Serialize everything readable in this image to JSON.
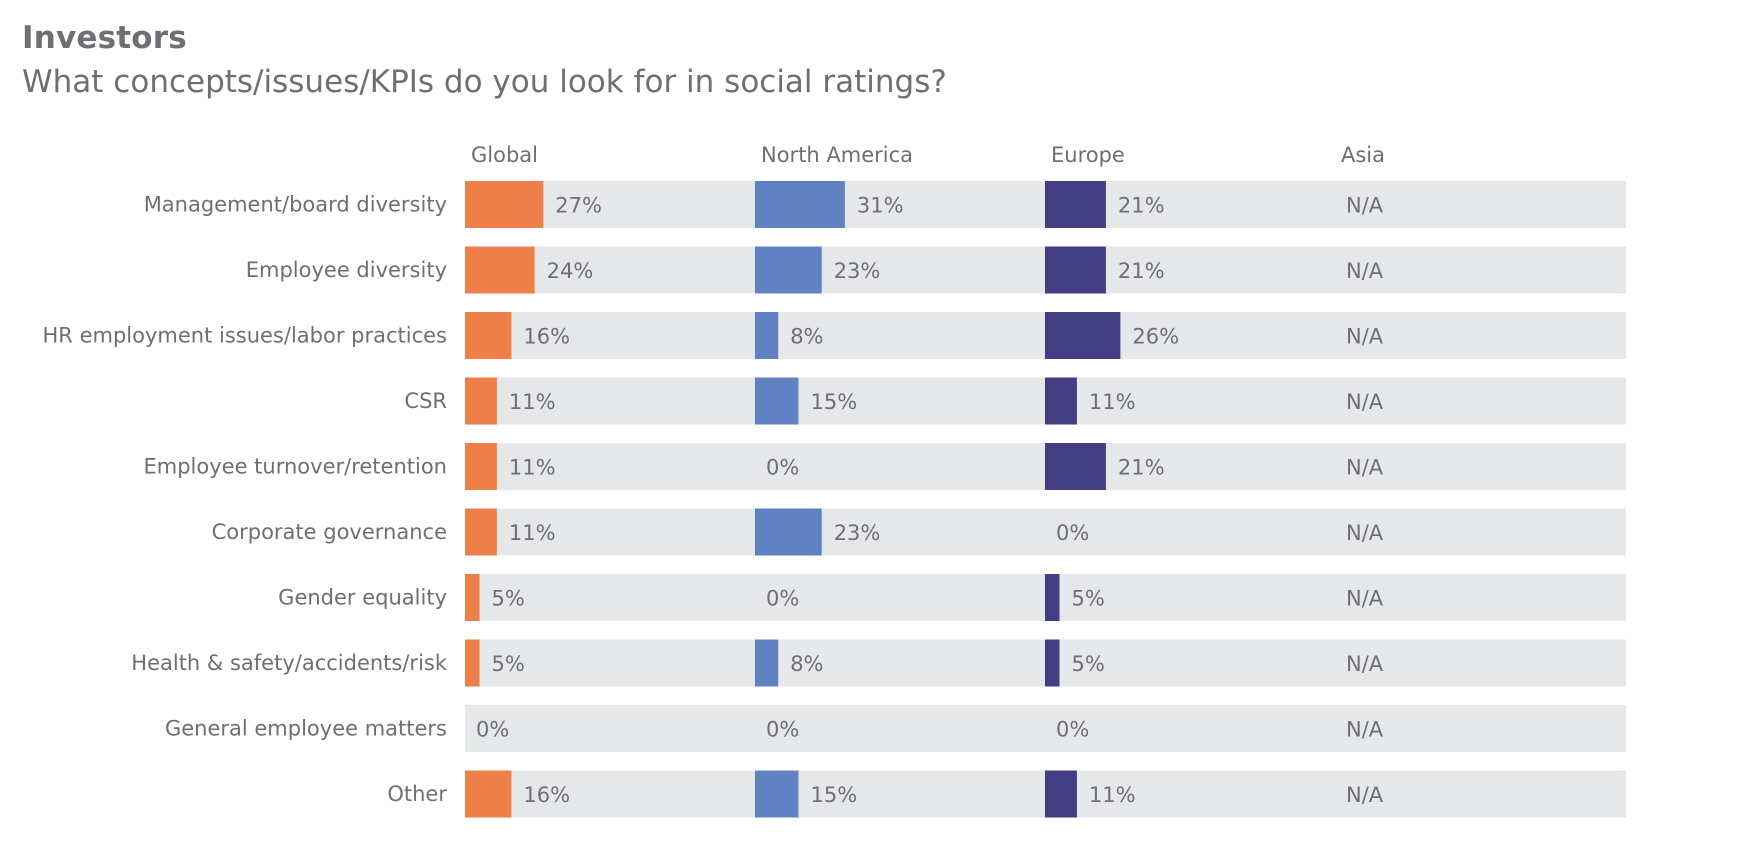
{
  "title": "Investors",
  "subtitle": "What concepts/issues/KPIs do you look for in social ratings?",
  "colors": {
    "track": "#e6e7e9",
    "text": "#6f6f73",
    "Global": "#ed8048",
    "North America": "#6182c2",
    "Europe": "#433e84"
  },
  "chart_data": {
    "type": "bar",
    "orientation": "horizontal",
    "categories": [
      "Management/board diversity",
      "Employee diversity",
      "HR employment issues/labor practices",
      "CSR",
      "Employee turnover/retention",
      "Corporate governance",
      "Gender equality",
      "Health & safety/accidents/risk",
      "General employee matters",
      "Other"
    ],
    "series": [
      {
        "name": "Global",
        "values": [
          27,
          24,
          16,
          11,
          11,
          11,
          5,
          5,
          0,
          16
        ],
        "labels": [
          "27%",
          "24%",
          "16%",
          "11%",
          "11%",
          "11%",
          "5%",
          "5%",
          "0%",
          "16%"
        ]
      },
      {
        "name": "North America",
        "values": [
          31,
          23,
          8,
          15,
          0,
          23,
          0,
          8,
          0,
          15
        ],
        "labels": [
          "31%",
          "23%",
          "8%",
          "15%",
          "0%",
          "23%",
          "0%",
          "8%",
          "0%",
          "15%"
        ]
      },
      {
        "name": "Europe",
        "values": [
          21,
          21,
          26,
          11,
          21,
          0,
          5,
          5,
          0,
          11
        ],
        "labels": [
          "21%",
          "21%",
          "26%",
          "11%",
          "21%",
          "0%",
          "5%",
          "5%",
          "0%",
          "11%"
        ]
      },
      {
        "name": "Asia",
        "values": [
          null,
          null,
          null,
          null,
          null,
          null,
          null,
          null,
          null,
          null
        ],
        "labels": [
          "N/A",
          "N/A",
          "N/A",
          "N/A",
          "N/A",
          "N/A",
          "N/A",
          "N/A",
          "N/A",
          "N/A"
        ]
      }
    ],
    "xlim": [
      0,
      100
    ],
    "unit": "%",
    "legend": "column headers",
    "grid": false
  }
}
